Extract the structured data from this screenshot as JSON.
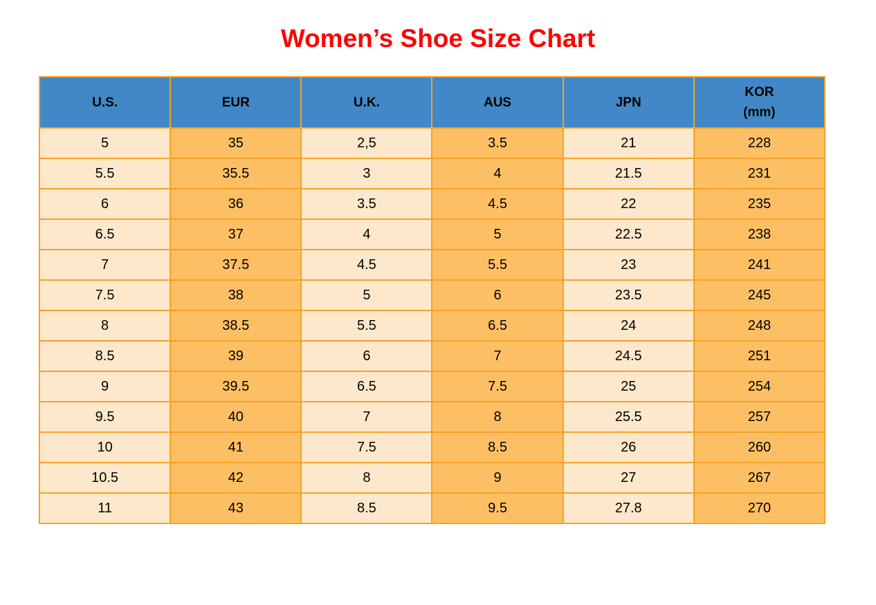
{
  "page": {
    "title": "Women’s Shoe Size Chart"
  },
  "colors": {
    "title_red": "#ff0000",
    "header_blue": "#4288c6",
    "cell_light": "#fde8cb",
    "cell_orange": "#fdbf63",
    "border_orange": "#f5a228",
    "text_black": "#000000",
    "page_bg": "#ffffff"
  },
  "chart_data": {
    "type": "table",
    "title": "Women’s Shoe Size Chart",
    "columns": [
      "U.S.",
      "EUR",
      "U.K.",
      "AUS",
      "JPN",
      "KOR\n(mm)"
    ],
    "rows": [
      [
        "5",
        "35",
        "2,5",
        "3.5",
        "21",
        "228"
      ],
      [
        "5.5",
        "35.5",
        "3",
        "4",
        "21.5",
        "231"
      ],
      [
        "6",
        "36",
        "3.5",
        "4.5",
        "22",
        "235"
      ],
      [
        "6.5",
        "37",
        "4",
        "5",
        "22.5",
        "238"
      ],
      [
        "7",
        "37.5",
        "4.5",
        "5.5",
        "23",
        "241"
      ],
      [
        "7.5",
        "38",
        "5",
        "6",
        "23.5",
        "245"
      ],
      [
        "8",
        "38.5",
        "5.5",
        "6.5",
        "24",
        "248"
      ],
      [
        "8.5",
        "39",
        "6",
        "7",
        "24.5",
        "251"
      ],
      [
        "9",
        "39.5",
        "6.5",
        "7.5",
        "25",
        "254"
      ],
      [
        "9.5",
        "40",
        "7",
        "8",
        "25.5",
        "257"
      ],
      [
        "10",
        "41",
        "7.5",
        "8.5",
        "26",
        "260"
      ],
      [
        "10.5",
        "42",
        "8",
        "9",
        "27",
        "267"
      ],
      [
        "11",
        "43",
        "8.5",
        "9.5",
        "27.8",
        "270"
      ]
    ],
    "layout": {
      "column_color_pattern": [
        "light",
        "orange",
        "light",
        "orange",
        "light",
        "orange"
      ],
      "header_text_color": "#000000",
      "grid": true
    }
  }
}
